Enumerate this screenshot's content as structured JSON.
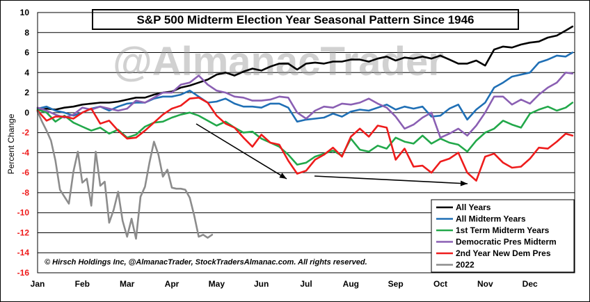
{
  "chart_data": {
    "type": "line",
    "title": "S&P 500 Midterm Election Year Seasonal Pattern Since 1946",
    "watermark": "@AlmanacTrader",
    "copyright": "© Hirsch Holdings Inc, @AlmanacTrader, StockTradersAlmanac.com. All rights reserved.",
    "xlabel": "",
    "ylabel": "Percent Change",
    "ylim": [
      -16,
      10
    ],
    "yticks": [
      "10",
      "8",
      "6",
      "4",
      "2",
      "0",
      "-2",
      "-4",
      "-6",
      "-8",
      "-10",
      "-12",
      "-14",
      "-16"
    ],
    "ytick_values": [
      10,
      8,
      6,
      4,
      2,
      0,
      -2,
      -4,
      -6,
      -8,
      -10,
      -12,
      -14,
      -16
    ],
    "months": [
      "Jan",
      "Feb",
      "Mar",
      "Apr",
      "May",
      "Jun",
      "Jul",
      "Aug",
      "Sep",
      "Oct",
      "Nov",
      "Dec"
    ],
    "grid": true,
    "legend_position": "bottom-right",
    "series": [
      {
        "name": "All Years",
        "color": "#000000",
        "x": [
          0,
          0.2,
          0.4,
          0.6,
          0.8,
          1.0,
          1.2,
          1.4,
          1.6,
          1.8,
          2.0,
          2.2,
          2.4,
          2.6,
          2.8,
          3.0,
          3.2,
          3.4,
          3.6,
          3.8,
          4.0,
          4.2,
          4.4,
          4.6,
          4.8,
          5.0,
          5.2,
          5.4,
          5.6,
          5.8,
          6.0,
          6.2,
          6.4,
          6.6,
          6.8,
          7.0,
          7.2,
          7.4,
          7.6,
          7.8,
          8.0,
          8.2,
          8.4,
          8.6,
          8.8,
          9.0,
          9.2,
          9.4,
          9.6,
          9.8,
          10.0,
          10.2,
          10.4,
          10.6,
          10.8,
          11.0,
          11.2,
          11.4,
          11.6,
          11.8,
          11.95
        ],
        "values": [
          0.2,
          0.4,
          0.3,
          0.5,
          0.6,
          0.8,
          0.9,
          1.0,
          1.0,
          1.1,
          1.3,
          1.5,
          1.5,
          1.8,
          2.0,
          2.1,
          2.5,
          2.7,
          3.0,
          3.3,
          3.8,
          4.0,
          3.7,
          4.1,
          4.4,
          4.2,
          4.6,
          4.9,
          4.9,
          4.3,
          4.9,
          5.0,
          4.9,
          5.1,
          5.1,
          5.3,
          5.3,
          5.1,
          5.4,
          5.6,
          5.2,
          5.5,
          5.4,
          5.6,
          5.4,
          5.7,
          5.3,
          4.9,
          4.9,
          5.2,
          4.7,
          6.3,
          6.6,
          6.5,
          6.8,
          7.0,
          7.1,
          7.5,
          7.7,
          8.2,
          8.6
        ]
      },
      {
        "name": "All Midterm Years",
        "color": "#1f6fb5",
        "x": [
          0,
          0.2,
          0.4,
          0.6,
          0.8,
          1.0,
          1.2,
          1.4,
          1.6,
          1.8,
          2.0,
          2.2,
          2.4,
          2.6,
          2.8,
          3.0,
          3.2,
          3.4,
          3.6,
          3.8,
          4.0,
          4.2,
          4.4,
          4.6,
          4.8,
          5.0,
          5.2,
          5.4,
          5.6,
          5.8,
          6.0,
          6.2,
          6.4,
          6.6,
          6.8,
          7.0,
          7.2,
          7.4,
          7.6,
          7.8,
          8.0,
          8.2,
          8.4,
          8.6,
          8.8,
          9.0,
          9.2,
          9.4,
          9.6,
          9.8,
          10.0,
          10.2,
          10.4,
          10.6,
          10.8,
          11.0,
          11.2,
          11.4,
          11.6,
          11.8,
          11.95
        ],
        "values": [
          0.4,
          0.6,
          0.2,
          0.0,
          -0.3,
          0.0,
          0.4,
          0.6,
          0.2,
          0.6,
          0.9,
          1.0,
          1.0,
          1.4,
          1.6,
          1.6,
          1.8,
          2.2,
          1.6,
          1.0,
          1.1,
          1.4,
          0.9,
          0.6,
          0.6,
          0.5,
          0.9,
          0.9,
          0.5,
          -0.9,
          -0.7,
          -0.6,
          -0.5,
          -0.1,
          -0.4,
          0.1,
          0.3,
          0.2,
          0.5,
          0.8,
          0.3,
          0.6,
          0.4,
          0.6,
          -0.4,
          -0.3,
          0.4,
          0.8,
          -0.7,
          0.3,
          1.0,
          2.5,
          3.0,
          3.6,
          3.8,
          4.0,
          5.0,
          5.3,
          5.7,
          5.6,
          6.0
        ]
      },
      {
        "name": "1st Term Midterm Years",
        "color": "#22a84a",
        "x": [
          0,
          0.2,
          0.4,
          0.6,
          0.8,
          1.0,
          1.2,
          1.4,
          1.6,
          1.8,
          2.0,
          2.2,
          2.4,
          2.6,
          2.8,
          3.0,
          3.2,
          3.4,
          3.6,
          3.8,
          4.0,
          4.2,
          4.4,
          4.6,
          4.8,
          5.0,
          5.2,
          5.4,
          5.6,
          5.8,
          6.0,
          6.2,
          6.4,
          6.6,
          6.8,
          7.0,
          7.2,
          7.4,
          7.6,
          7.8,
          8.0,
          8.2,
          8.4,
          8.6,
          8.8,
          9.0,
          9.2,
          9.4,
          9.6,
          9.8,
          10.0,
          10.2,
          10.4,
          10.6,
          10.8,
          11.0,
          11.2,
          11.4,
          11.6,
          11.8,
          11.95
        ],
        "values": [
          0.3,
          0.0,
          -0.9,
          -0.3,
          -1.0,
          -1.4,
          -1.8,
          -1.5,
          -2.1,
          -1.7,
          -2.5,
          -2.2,
          -1.4,
          -1.0,
          -0.9,
          -0.5,
          -0.2,
          0.0,
          -0.3,
          -0.8,
          -1.3,
          -0.9,
          -1.5,
          -2.0,
          -1.9,
          -2.6,
          -3.0,
          -3.4,
          -4.2,
          -5.2,
          -5.0,
          -4.4,
          -4.1,
          -3.8,
          -4.3,
          -2.6,
          -3.7,
          -3.9,
          -3.3,
          -3.6,
          -2.5,
          -2.9,
          -3.1,
          -2.3,
          -3.1,
          -2.6,
          -3.0,
          -3.2,
          -3.9,
          -2.8,
          -2.0,
          -1.6,
          -0.8,
          -1.2,
          -1.5,
          -0.1,
          0.3,
          0.6,
          0.2,
          0.5,
          1.0
        ]
      },
      {
        "name": "Democratic Pres Midterm",
        "color": "#8a5fb3",
        "x": [
          0,
          0.2,
          0.4,
          0.6,
          0.8,
          1.0,
          1.2,
          1.4,
          1.6,
          1.8,
          2.0,
          2.2,
          2.4,
          2.6,
          2.8,
          3.0,
          3.2,
          3.4,
          3.6,
          3.8,
          4.0,
          4.2,
          4.4,
          4.6,
          4.8,
          5.0,
          5.2,
          5.4,
          5.6,
          5.8,
          6.0,
          6.2,
          6.4,
          6.6,
          6.8,
          7.0,
          7.2,
          7.4,
          7.6,
          7.8,
          8.0,
          8.2,
          8.4,
          8.6,
          8.8,
          9.0,
          9.2,
          9.4,
          9.6,
          9.8,
          10.0,
          10.2,
          10.4,
          10.6,
          10.8,
          11.0,
          11.2,
          11.4,
          11.6,
          11.8,
          11.95
        ],
        "values": [
          0.5,
          0.2,
          -0.2,
          -0.5,
          -0.2,
          0.5,
          0.3,
          0.6,
          0.4,
          0.2,
          0.4,
          1.2,
          1.0,
          1.5,
          2.0,
          2.0,
          2.8,
          3.0,
          3.7,
          2.8,
          2.2,
          2.0,
          1.6,
          1.5,
          1.2,
          1.2,
          1.3,
          1.6,
          1.5,
          0.0,
          -0.6,
          0.2,
          0.6,
          0.5,
          0.9,
          0.8,
          1.0,
          1.4,
          0.9,
          0.5,
          -0.4,
          -1.6,
          -1.2,
          -0.5,
          0.0,
          -2.5,
          -2.1,
          -1.6,
          -2.3,
          -1.3,
          0.0,
          1.6,
          1.6,
          0.8,
          1.3,
          0.9,
          1.8,
          2.5,
          3.0,
          4.0,
          3.9
        ]
      },
      {
        "name": "2nd Year New Dem Pres",
        "color": "#ee1c1c",
        "x": [
          0,
          0.2,
          0.4,
          0.6,
          0.8,
          1.0,
          1.2,
          1.4,
          1.6,
          1.8,
          2.0,
          2.2,
          2.4,
          2.6,
          2.8,
          3.0,
          3.2,
          3.4,
          3.6,
          3.8,
          4.0,
          4.2,
          4.4,
          4.6,
          4.8,
          5.0,
          5.2,
          5.4,
          5.6,
          5.8,
          6.0,
          6.2,
          6.4,
          6.6,
          6.8,
          7.0,
          7.2,
          7.4,
          7.6,
          7.8,
          8.0,
          8.2,
          8.4,
          8.6,
          8.8,
          9.0,
          9.2,
          9.4,
          9.6,
          9.8,
          10.0,
          10.2,
          10.4,
          10.6,
          10.8,
          11.0,
          11.2,
          11.4,
          11.6,
          11.8,
          11.95
        ],
        "values": [
          0.2,
          -0.8,
          -0.4,
          -0.4,
          -0.6,
          0.0,
          0.4,
          -1.1,
          -0.8,
          -1.8,
          -2.6,
          -2.5,
          -1.8,
          -1.0,
          -0.2,
          0.4,
          0.7,
          1.4,
          1.5,
          1.0,
          -0.3,
          -1.1,
          -1.5,
          -2.5,
          -3.4,
          -2.2,
          -3.0,
          -3.2,
          -4.8,
          -6.1,
          -5.8,
          -4.7,
          -4.2,
          -3.5,
          -4.4,
          -2.4,
          -1.6,
          -2.4,
          -1.3,
          -1.5,
          -4.7,
          -3.6,
          -5.4,
          -5.3,
          -6.0,
          -4.9,
          -4.6,
          -4.0,
          -6.0,
          -6.8,
          -4.4,
          -4.1,
          -5.0,
          -5.5,
          -5.4,
          -4.6,
          -3.5,
          -3.6,
          -2.9,
          -2.1,
          -2.3
        ]
      },
      {
        "name": "2022",
        "color": "#8c8c8c",
        "x": [
          0,
          0.1,
          0.2,
          0.3,
          0.4,
          0.5,
          0.6,
          0.7,
          0.8,
          0.9,
          1.0,
          1.1,
          1.2,
          1.3,
          1.4,
          1.5,
          1.6,
          1.7,
          1.8,
          1.9,
          2.0,
          2.1,
          2.2,
          2.3,
          2.4,
          2.5,
          2.6,
          2.7,
          2.8,
          2.9,
          3.0,
          3.1,
          3.2,
          3.3,
          3.4,
          3.5,
          3.6,
          3.7,
          3.8,
          3.9
        ],
        "values": [
          0.1,
          -0.9,
          -1.8,
          -2.8,
          -4.8,
          -7.7,
          -8.4,
          -9.1,
          -5.9,
          -3.9,
          -7.0,
          -6.6,
          -9.3,
          -3.9,
          -7.3,
          -6.9,
          -11.0,
          -9.7,
          -7.9,
          -10.8,
          -12.4,
          -10.6,
          -12.6,
          -8.4,
          -7.4,
          -5.0,
          -2.9,
          -4.2,
          -6.4,
          -5.7,
          -7.5,
          -7.6,
          -7.6,
          -7.7,
          -8.5,
          -10.3,
          -12.4,
          -12.2,
          -12.5,
          -12.2
        ]
      }
    ]
  }
}
